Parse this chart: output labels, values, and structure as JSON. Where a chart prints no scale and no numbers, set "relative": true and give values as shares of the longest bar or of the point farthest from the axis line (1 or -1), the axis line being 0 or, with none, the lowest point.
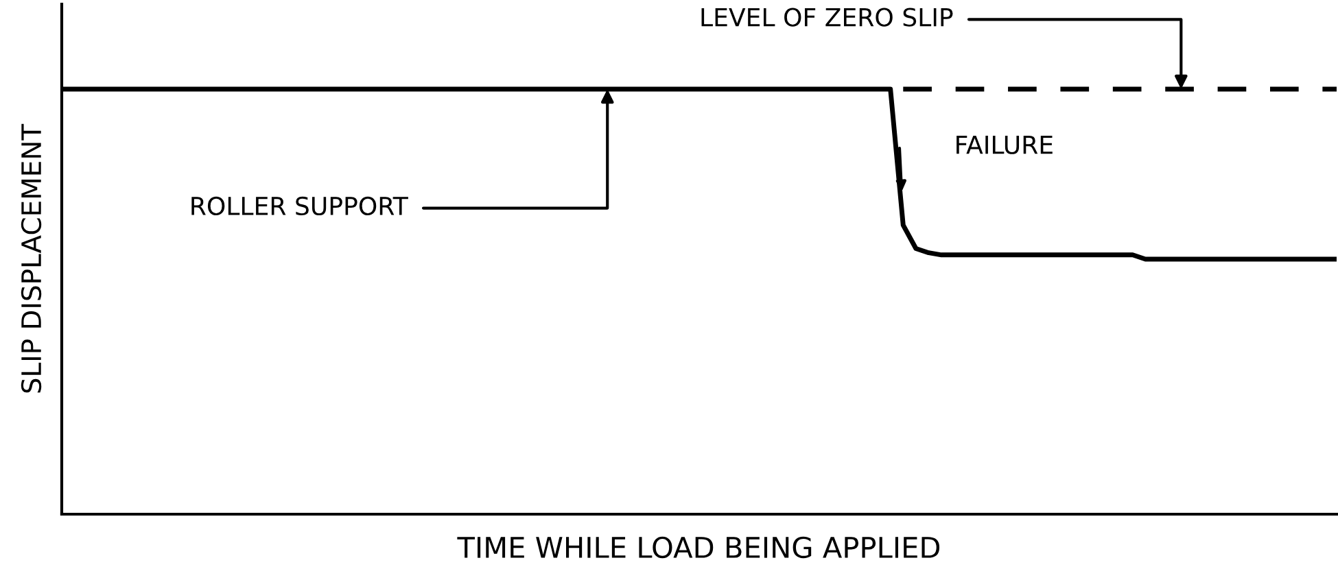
{
  "chart_data": {
    "type": "line",
    "relative": true,
    "xlabel": "TIME WHILE LOAD BEING APPLIED",
    "ylabel": "SLIP DISPLACEMENT",
    "categories": [
      null,
      null,
      null,
      null,
      null,
      null,
      null,
      null,
      null,
      null,
      null,
      null,
      null,
      null,
      null,
      null,
      null,
      null,
      null,
      null,
      null,
      null,
      null,
      null,
      null,
      null,
      null,
      null,
      null,
      null,
      null,
      null,
      null,
      null,
      null,
      null,
      null,
      null,
      null,
      null,
      null,
      null,
      null,
      null,
      null,
      null,
      null,
      null,
      null,
      null,
      null,
      null,
      null,
      null,
      null,
      null,
      null,
      null,
      null,
      null,
      null,
      null,
      null,
      null,
      null,
      null,
      null,
      null,
      null,
      null,
      null,
      null,
      null,
      null,
      null,
      null,
      null,
      null,
      null,
      null,
      null,
      null,
      null,
      null,
      null,
      null,
      null,
      null,
      null,
      null,
      null,
      null,
      null,
      null,
      null,
      null,
      null,
      null,
      null,
      null,
      null
    ],
    "series": [
      {
        "color": "#000000",
        "line_style": "solid",
        "values": [
          1,
          1,
          1,
          1,
          1,
          1,
          1,
          1,
          1,
          1,
          1,
          1,
          1,
          1,
          1,
          1,
          1,
          1,
          1,
          1,
          1,
          1,
          1,
          1,
          1,
          1,
          1,
          1,
          1,
          1,
          1,
          1,
          1,
          1,
          1,
          1,
          1,
          1,
          1,
          1,
          1,
          1,
          1,
          1,
          1,
          1,
          1,
          1,
          1,
          1,
          1,
          1,
          1,
          1,
          1,
          1,
          1,
          1,
          1,
          1,
          1,
          1,
          1,
          1,
          1,
          1,
          0.68,
          0.625,
          0.615,
          0.61,
          0.61,
          0.61,
          0.61,
          0.61,
          0.61,
          0.61,
          0.61,
          0.61,
          0.61,
          0.61,
          0.61,
          0.61,
          0.61,
          0.61,
          0.61,
          0.6,
          0.6,
          0.6,
          0.6,
          0.6,
          0.6,
          0.6,
          0.6,
          0.6,
          0.6,
          0.6,
          0.6,
          0.6,
          0.6,
          0.6,
          0.6
        ]
      },
      {
        "color": "#000000",
        "line_style": "dashed",
        "values": [
          null,
          null,
          null,
          null,
          null,
          null,
          null,
          null,
          null,
          null,
          null,
          null,
          null,
          null,
          null,
          null,
          null,
          null,
          null,
          null,
          null,
          null,
          null,
          null,
          null,
          null,
          null,
          null,
          null,
          null,
          null,
          null,
          null,
          null,
          null,
          null,
          null,
          null,
          null,
          null,
          null,
          null,
          null,
          null,
          null,
          null,
          null,
          null,
          null,
          null,
          null,
          null,
          null,
          null,
          null,
          null,
          null,
          null,
          null,
          null,
          null,
          null,
          null,
          null,
          null,
          null,
          1,
          1,
          1,
          1,
          1,
          1,
          1,
          1,
          1,
          1,
          1,
          1,
          1,
          1,
          1,
          1,
          1,
          1,
          1,
          1,
          1,
          1,
          1,
          1,
          1,
          1,
          1,
          1,
          1,
          1,
          1,
          1,
          1,
          1,
          1
        ]
      }
    ],
    "annotations": [
      "ROLLER SUPPORT",
      "FAILURE",
      "LEVEL OF ZERO SLIP"
    ]
  }
}
